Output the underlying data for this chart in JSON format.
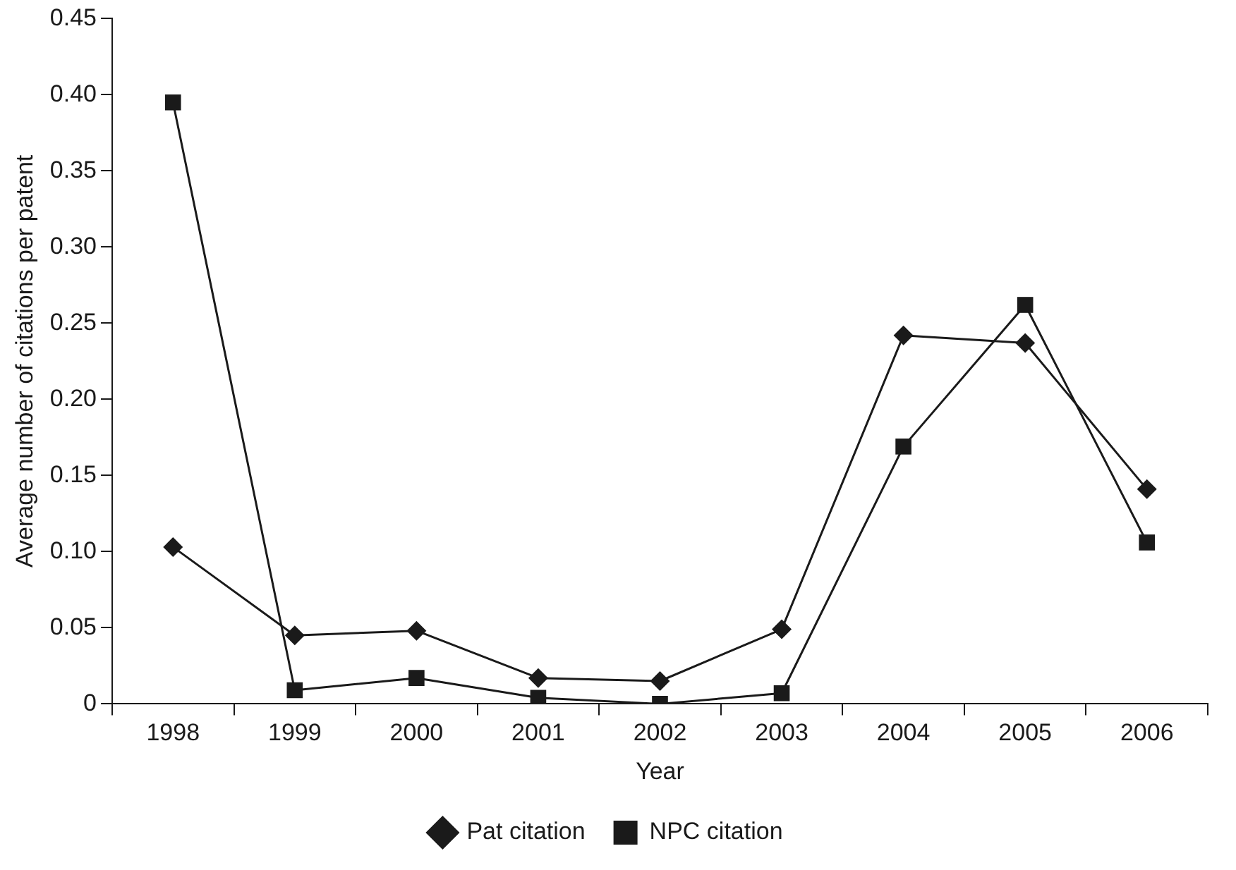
{
  "chart_data": {
    "type": "line",
    "xlabel": "Year",
    "ylabel": "Average number of citations per patent",
    "categories": [
      "1998",
      "1999",
      "2000",
      "2001",
      "2002",
      "2003",
      "2004",
      "2005",
      "2006"
    ],
    "series": [
      {
        "name": "Pat citation",
        "color": "#1a1a1a",
        "marker": "diamond",
        "values": [
          0.103,
          0.045,
          0.048,
          0.017,
          0.015,
          0.049,
          0.242,
          0.237,
          0.141
        ]
      },
      {
        "name": "NPC citation",
        "color": "#1a1a1a",
        "marker": "square",
        "values": [
          0.395,
          0.009,
          0.017,
          0.004,
          0.0,
          0.007,
          0.169,
          0.262,
          0.106
        ]
      }
    ],
    "ylim": [
      0,
      0.45
    ],
    "yticks": [
      {
        "value": 0,
        "label": "0"
      },
      {
        "value": 0.05,
        "label": "0.05"
      },
      {
        "value": 0.1,
        "label": "0.10"
      },
      {
        "value": 0.15,
        "label": "0.15"
      },
      {
        "value": 0.2,
        "label": "0.20"
      },
      {
        "value": 0.25,
        "label": "0.25"
      },
      {
        "value": 0.3,
        "label": "0.30"
      },
      {
        "value": 0.35,
        "label": "0.35"
      },
      {
        "value": 0.4,
        "label": "0.40"
      },
      {
        "value": 0.45,
        "label": "0.45"
      }
    ],
    "grid": false,
    "legend": "bottom",
    "line_style": "solid"
  }
}
